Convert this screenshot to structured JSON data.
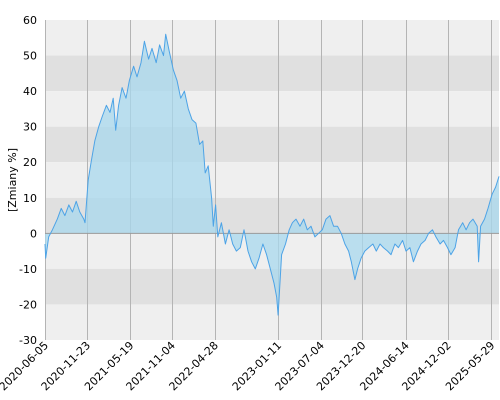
{
  "chart_data": {
    "type": "area",
    "title": "",
    "xlabel": "",
    "ylabel": "[Zmiany %]",
    "ylim": [
      -30,
      60
    ],
    "yticks": [
      "60",
      "50",
      "40",
      "30",
      "20",
      "10",
      "0",
      "-10",
      "-20",
      "-30"
    ],
    "xlim": [
      "2020-06-05",
      "2025-06-29"
    ],
    "xticks": [
      "2020-06-05",
      "2020-11-23",
      "2021-05-19",
      "2021-11-04",
      "2022-04-28",
      "2023-01-11",
      "2023-07-04",
      "2023-12-20",
      "2024-06-14",
      "2024-12-02",
      "2025-05-29"
    ],
    "grid": true,
    "legend": "none",
    "colors": {
      "line": "#4da3e6",
      "fill": "#a8d8ee",
      "band_light": "#efefef",
      "band_dark": "#e0e0e0",
      "gridline": "#b4b4b4",
      "zero_line": "#9a9a9a"
    },
    "series": [
      {
        "points": [
          [
            "2020-06-05",
            -3
          ],
          [
            "2020-06-08",
            -7
          ],
          [
            "2020-06-20",
            -1
          ],
          [
            "2020-07-05",
            1
          ],
          [
            "2020-07-25",
            4
          ],
          [
            "2020-08-10",
            7
          ],
          [
            "2020-08-25",
            5
          ],
          [
            "2020-09-10",
            8
          ],
          [
            "2020-09-25",
            6
          ],
          [
            "2020-10-10",
            9
          ],
          [
            "2020-10-25",
            6
          ],
          [
            "2020-11-10",
            4
          ],
          [
            "2020-11-15",
            3
          ],
          [
            "2020-11-28",
            15
          ],
          [
            "2020-12-10",
            20
          ],
          [
            "2020-12-25",
            26
          ],
          [
            "2021-01-10",
            30
          ],
          [
            "2021-01-25",
            33
          ],
          [
            "2021-02-10",
            36
          ],
          [
            "2021-02-25",
            34
          ],
          [
            "2021-03-10",
            38
          ],
          [
            "2021-03-20",
            29
          ],
          [
            "2021-04-01",
            36
          ],
          [
            "2021-04-15",
            41
          ],
          [
            "2021-05-01",
            38
          ],
          [
            "2021-05-15",
            43
          ],
          [
            "2021-06-01",
            47
          ],
          [
            "2021-06-15",
            44
          ],
          [
            "2021-07-01",
            48
          ],
          [
            "2021-07-15",
            54
          ],
          [
            "2021-08-01",
            49
          ],
          [
            "2021-08-15",
            52
          ],
          [
            "2021-09-01",
            48
          ],
          [
            "2021-09-15",
            53
          ],
          [
            "2021-10-01",
            50
          ],
          [
            "2021-10-10",
            56
          ],
          [
            "2021-10-25",
            51
          ],
          [
            "2021-11-10",
            46
          ],
          [
            "2021-11-25",
            43
          ],
          [
            "2021-12-10",
            38
          ],
          [
            "2021-12-25",
            40
          ],
          [
            "2022-01-10",
            35
          ],
          [
            "2022-01-25",
            32
          ],
          [
            "2022-02-10",
            31
          ],
          [
            "2022-02-25",
            25
          ],
          [
            "2022-03-10",
            26
          ],
          [
            "2022-03-20",
            17
          ],
          [
            "2022-04-01",
            19
          ],
          [
            "2022-04-15",
            10
          ],
          [
            "2022-04-22",
            2
          ],
          [
            "2022-05-01",
            8
          ],
          [
            "2022-05-10",
            -1
          ],
          [
            "2022-05-25",
            3
          ],
          [
            "2022-06-10",
            -3
          ],
          [
            "2022-06-25",
            1
          ],
          [
            "2022-07-10",
            -3
          ],
          [
            "2022-07-25",
            -5
          ],
          [
            "2022-08-10",
            -4
          ],
          [
            "2022-08-25",
            1
          ],
          [
            "2022-09-10",
            -5
          ],
          [
            "2022-09-25",
            -8
          ],
          [
            "2022-10-10",
            -10
          ],
          [
            "2022-10-25",
            -7
          ],
          [
            "2022-11-10",
            -3
          ],
          [
            "2022-11-25",
            -6
          ],
          [
            "2022-12-10",
            -10
          ],
          [
            "2022-12-25",
            -14
          ],
          [
            "2023-01-05",
            -18
          ],
          [
            "2023-01-11",
            -23
          ],
          [
            "2023-01-25",
            -6
          ],
          [
            "2023-02-10",
            -3
          ],
          [
            "2023-02-25",
            1
          ],
          [
            "2023-03-10",
            3
          ],
          [
            "2023-03-25",
            4
          ],
          [
            "2023-04-10",
            2
          ],
          [
            "2023-04-25",
            4
          ],
          [
            "2023-05-10",
            1
          ],
          [
            "2023-05-25",
            2
          ],
          [
            "2023-06-10",
            -1
          ],
          [
            "2023-06-25",
            0
          ],
          [
            "2023-07-10",
            1
          ],
          [
            "2023-07-25",
            4
          ],
          [
            "2023-08-10",
            5
          ],
          [
            "2023-08-25",
            2
          ],
          [
            "2023-09-10",
            2
          ],
          [
            "2023-09-25",
            0
          ],
          [
            "2023-10-10",
            -3
          ],
          [
            "2023-10-25",
            -5
          ],
          [
            "2023-11-05",
            -8
          ],
          [
            "2023-11-20",
            -13
          ],
          [
            "2023-12-01",
            -10
          ],
          [
            "2023-12-15",
            -7
          ],
          [
            "2023-12-30",
            -5
          ],
          [
            "2024-01-15",
            -4
          ],
          [
            "2024-02-01",
            -3
          ],
          [
            "2024-02-15",
            -5
          ],
          [
            "2024-03-01",
            -3
          ],
          [
            "2024-03-15",
            -4
          ],
          [
            "2024-04-01",
            -5
          ],
          [
            "2024-04-15",
            -6
          ],
          [
            "2024-05-01",
            -3
          ],
          [
            "2024-05-15",
            -4
          ],
          [
            "2024-06-01",
            -2
          ],
          [
            "2024-06-15",
            -5
          ],
          [
            "2024-07-01",
            -4
          ],
          [
            "2024-07-15",
            -8
          ],
          [
            "2024-08-01",
            -5
          ],
          [
            "2024-08-15",
            -3
          ],
          [
            "2024-09-01",
            -2
          ],
          [
            "2024-09-15",
            0
          ],
          [
            "2024-10-01",
            1
          ],
          [
            "2024-10-15",
            -1
          ],
          [
            "2024-11-01",
            -3
          ],
          [
            "2024-11-15",
            -2
          ],
          [
            "2024-12-01",
            -4
          ],
          [
            "2024-12-15",
            -6
          ],
          [
            "2025-01-01",
            -4
          ],
          [
            "2025-01-15",
            1
          ],
          [
            "2025-02-01",
            3
          ],
          [
            "2025-02-15",
            1
          ],
          [
            "2025-03-01",
            3
          ],
          [
            "2025-03-15",
            4
          ],
          [
            "2025-04-01",
            2
          ],
          [
            "2025-04-07",
            -8
          ],
          [
            "2025-04-15",
            2
          ],
          [
            "2025-05-01",
            4
          ],
          [
            "2025-05-15",
            7
          ],
          [
            "2025-06-01",
            11
          ],
          [
            "2025-06-15",
            13
          ],
          [
            "2025-06-29",
            16
          ]
        ]
      }
    ]
  }
}
